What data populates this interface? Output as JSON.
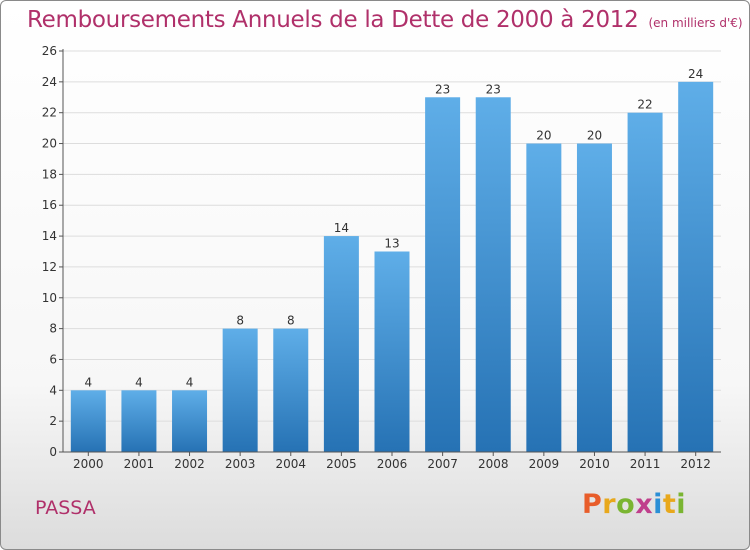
{
  "header": {
    "title": "Remboursements Annuels de la Dette de 2000 à 2012",
    "subtitle": "(en milliers d'€)"
  },
  "footer": {
    "commune": "PASSA",
    "logo": "Proxiti"
  },
  "colors": {
    "title": "#b0306a",
    "bar_top": "#5faee8",
    "bar_bottom": "#2672b4",
    "logo_letters": [
      "#e85d2a",
      "#e8a81c",
      "#7ab532",
      "#c03f8c",
      "#2b8fd6",
      "#e8a81c",
      "#7ab532"
    ]
  },
  "chart_data": {
    "type": "bar",
    "categories": [
      "2000",
      "2001",
      "2002",
      "2003",
      "2004",
      "2005",
      "2006",
      "2007",
      "2008",
      "2009",
      "2010",
      "2011",
      "2012"
    ],
    "values": [
      4,
      4,
      4,
      8,
      8,
      14,
      13,
      23,
      23,
      20,
      20,
      22,
      24
    ],
    "data_labels": [
      "4",
      "4",
      "4",
      "8",
      "8",
      "14",
      "13",
      "23",
      "23",
      "20",
      "20",
      "22",
      "24"
    ],
    "title": "Remboursements Annuels de la Dette de 2000 à 2012",
    "xlabel": "",
    "ylabel": "",
    "ylim": [
      0,
      26
    ],
    "yticks": [
      0,
      2,
      4,
      6,
      8,
      10,
      12,
      14,
      16,
      18,
      20,
      22,
      24,
      26
    ],
    "grid": true
  }
}
